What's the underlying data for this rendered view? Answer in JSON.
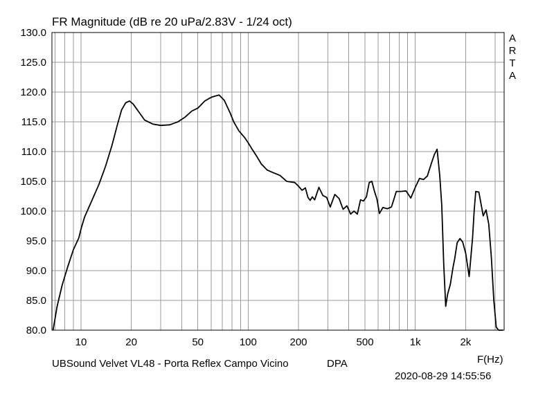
{
  "chart_data": {
    "type": "line",
    "title": "FR Magnitude (dB re 20 uPa/2.83V - 1/24 oct)",
    "x_unit_label": "F(Hz)",
    "x_scale": "log",
    "xlim": [
      6.7,
      3400
    ],
    "ylim": [
      80,
      130
    ],
    "y_ticks": [
      "130.0",
      "125.0",
      "120.0",
      "115.0",
      "110.0",
      "105.0",
      "100.0",
      "95.0",
      "90.0",
      "85.0",
      "80.0"
    ],
    "x_tick_labels": [
      {
        "value": 10,
        "label": "10"
      },
      {
        "value": 20,
        "label": "20"
      },
      {
        "value": 50,
        "label": "50"
      },
      {
        "value": 100,
        "label": "100"
      },
      {
        "value": 200,
        "label": "200"
      },
      {
        "value": 500,
        "label": "500"
      },
      {
        "value": 1000,
        "label": "1k"
      },
      {
        "value": 2000,
        "label": "2k"
      }
    ],
    "grid": true,
    "line_color": "#000000",
    "grid_color": "#9a9a9a",
    "series": [
      {
        "x": [
          6.8,
          7.2,
          7.7,
          8.3,
          9.0,
          9.7,
          10.0,
          10.5,
          11.5,
          12.8,
          14.0,
          15.3,
          16.5,
          17.5,
          18.5,
          19.5,
          20.5,
          22.0,
          24.0,
          27.0,
          30.0,
          34.0,
          38.0,
          42.0,
          46.0,
          50.0,
          55.0,
          60.0,
          63.0,
          67.0,
          72.0,
          78.0,
          82.0,
          88.0,
          95.0,
          100,
          105,
          112,
          120,
          130,
          140,
          155,
          170,
          190,
          200,
          210,
          220,
          228,
          235,
          242,
          250,
          265,
          280,
          295,
          310,
          330,
          350,
          370,
          390,
          410,
          430,
          450,
          470,
          490,
          510,
          530,
          550,
          570,
          590,
          610,
          640,
          680,
          720,
          770,
          820,
          880,
          940,
          1000,
          1060,
          1120,
          1180,
          1240,
          1300,
          1350,
          1400,
          1440,
          1480,
          1520,
          1560,
          1620,
          1680,
          1720,
          1780,
          1850,
          1920,
          2000,
          2100,
          2200,
          2250,
          2300,
          2400,
          2550,
          2650,
          2750,
          2850,
          2950,
          3050,
          3150,
          3250,
          3350
        ],
        "values": [
          80.0,
          84.0,
          87.5,
          90.5,
          93.5,
          95.5,
          97.0,
          99.0,
          101.5,
          104.5,
          107.5,
          111.0,
          114.5,
          117.0,
          118.2,
          118.5,
          118.0,
          116.8,
          115.3,
          114.6,
          114.4,
          114.5,
          115.0,
          115.8,
          116.8,
          117.3,
          118.5,
          119.1,
          119.3,
          119.5,
          118.6,
          116.5,
          115.0,
          113.5,
          112.4,
          111.5,
          110.5,
          109.3,
          107.9,
          106.9,
          106.5,
          106.0,
          105.0,
          104.8,
          104.2,
          103.5,
          103.9,
          102.3,
          101.8,
          102.4,
          101.9,
          104.0,
          102.6,
          102.3,
          100.7,
          102.8,
          102.1,
          100.3,
          100.9,
          99.5,
          100.0,
          99.5,
          101.9,
          101.7,
          102.4,
          104.8,
          105.0,
          103.3,
          102.0,
          99.6,
          100.6,
          100.4,
          100.7,
          103.3,
          103.3,
          103.4,
          102.2,
          104.0,
          105.5,
          105.3,
          105.9,
          107.8,
          109.5,
          110.4,
          106.0,
          101.0,
          91.0,
          84.0,
          86.0,
          87.7,
          90.5,
          92.0,
          94.7,
          95.4,
          94.8,
          93.0,
          89.0,
          95.5,
          100.0,
          103.3,
          103.2,
          99.2,
          100.2,
          97.8,
          92.3,
          85.0,
          80.5,
          80.0,
          80.0,
          80.0
        ]
      }
    ]
  },
  "footer": {
    "device": "UBSound Velvet VL48 - Porta Reflex Campo Vicino",
    "mode": "DPA",
    "timestamp": "2020-08-29  14:55:56"
  },
  "brand": {
    "name": "ARTA",
    "letters": [
      "A",
      "R",
      "T",
      "A"
    ]
  }
}
